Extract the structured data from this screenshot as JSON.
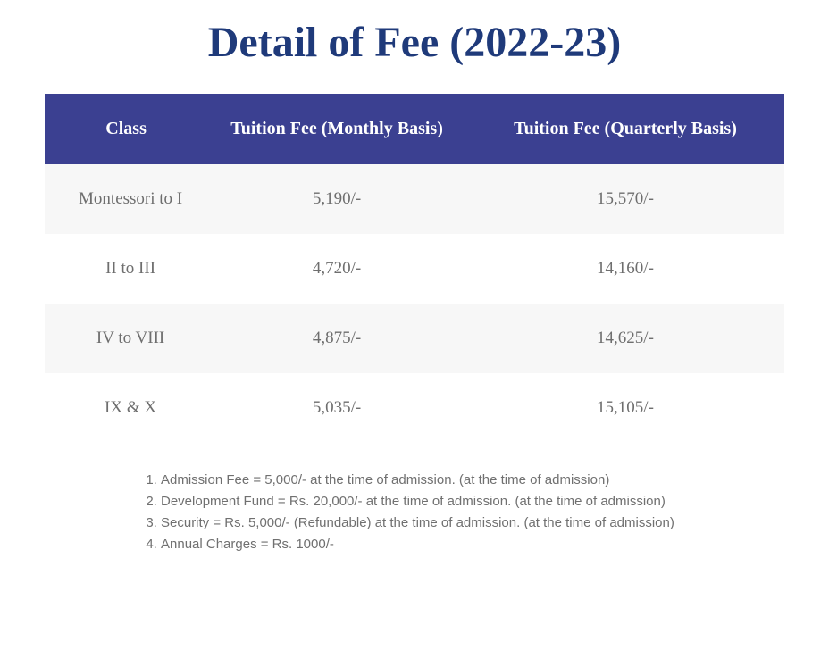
{
  "title": "Detail of Fee (2022-23)",
  "table": {
    "header_bg_color": "#3b4091",
    "header_text_color": "#ffffff",
    "row_bg_color": "#f7f7f7",
    "row_alt_bg_color": "#ffffff",
    "cell_text_color": "#6e6e6e",
    "columns": [
      "Class",
      "Tuition Fee (Monthly Basis)",
      "Tuition Fee (Quarterly Basis)"
    ],
    "rows": [
      {
        "class": "Montessori to I",
        "monthly": "5,190/-",
        "quarterly": "15,570/-"
      },
      {
        "class": "II to III",
        "monthly": "4,720/-",
        "quarterly": "14,160/-"
      },
      {
        "class": "IV to VIII",
        "monthly": "4,875/-",
        "quarterly": "14,625/-"
      },
      {
        "class": "IX & X",
        "monthly": "5,035/-",
        "quarterly": "15,105/-"
      }
    ]
  },
  "notes": [
    "Admission Fee = 5,000/- at the time of admission. (at the time of admission)",
    "Development Fund =  Rs. 20,000/- at the time of admission. (at the time of admission)",
    "Security = Rs. 5,000/- (Refundable) at the time of admission. (at the time of admission)",
    "Annual Charges = Rs. 1000/-"
  ],
  "colors": {
    "title_color": "#1f3a7a",
    "notes_color": "#707070",
    "background": "#ffffff"
  }
}
